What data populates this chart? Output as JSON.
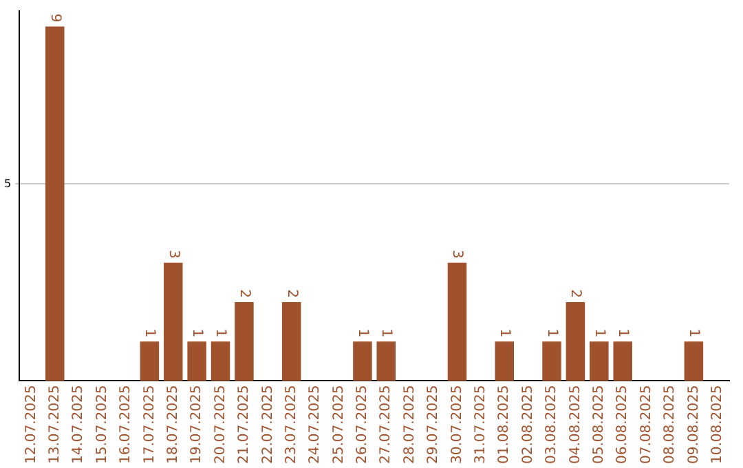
{
  "chart_data": {
    "type": "bar",
    "categories": [
      "12.07.2025",
      "13.07.2025",
      "14.07.2025",
      "15.07.2025",
      "16.07.2025",
      "17.07.2025",
      "18.07.2025",
      "19.07.2025",
      "20.07.2025",
      "21.07.2025",
      "22.07.2025",
      "23.07.2025",
      "24.07.2025",
      "25.07.2025",
      "26.07.2025",
      "27.07.2025",
      "28.07.2025",
      "29.07.2025",
      "30.07.2025",
      "31.07.2025",
      "01.08.2025",
      "02.08.2025",
      "03.08.2025",
      "04.08.2025",
      "05.08.2025",
      "06.08.2025",
      "07.08.2025",
      "08.08.2025",
      "09.08.2025",
      "10.08.2025"
    ],
    "values": [
      null,
      9,
      null,
      null,
      null,
      1,
      3,
      1,
      1,
      2,
      null,
      2,
      null,
      null,
      1,
      1,
      null,
      null,
      3,
      null,
      1,
      null,
      1,
      2,
      1,
      1,
      null,
      null,
      1,
      null
    ],
    "color": "#a0522d",
    "ylim": [
      0,
      9.4
    ],
    "yticks": [
      5
    ],
    "grid": "y",
    "data_labels": true,
    "legend": false
  }
}
